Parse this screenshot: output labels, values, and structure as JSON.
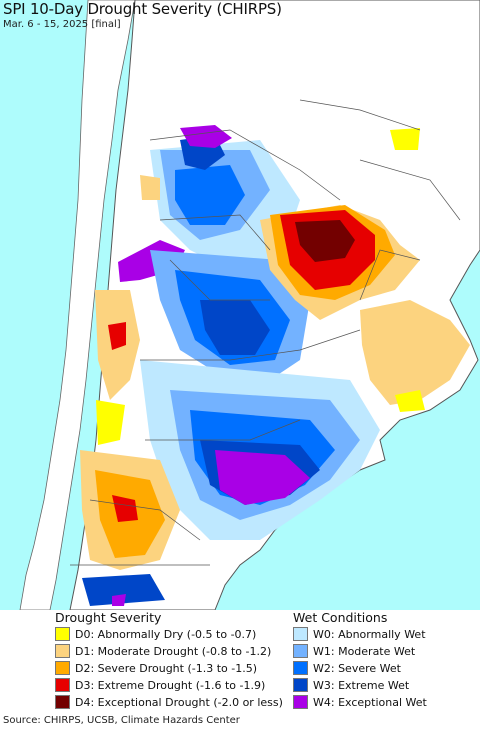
{
  "title": "SPI 10-Day Drought Severity (CHIRPS)",
  "subtitle": "Mar. 6 - 15, 2025 [final]",
  "colors": {
    "ocean": "#aefcfc",
    "land_bg": "#ffffff",
    "neighbor_land": "#ffffff",
    "borders": "#555555"
  },
  "legend": {
    "drought_heading": "Drought Severity",
    "wet_heading": "Wet Conditions",
    "drought_items": [
      {
        "label": "D0: Abnormally Dry (-0.5 to -0.7)",
        "color": "#ffff00"
      },
      {
        "label": "D1: Moderate Drought (-0.8 to -1.2)",
        "color": "#fcd37f"
      },
      {
        "label": "D2: Severe Drought (-1.3 to -1.5)",
        "color": "#ffaa00"
      },
      {
        "label": "D3: Extreme Drought (-1.6 to -1.9)",
        "color": "#e60000"
      },
      {
        "label": "D4: Exceptional Drought (-2.0 or less)",
        "color": "#730000"
      }
    ],
    "wet_items": [
      {
        "label": "W0: Abnormally Wet",
        "color": "#bee8ff"
      },
      {
        "label": "W1: Moderate Wet",
        "color": "#73b2ff"
      },
      {
        "label": "W2: Severe Wet",
        "color": "#0070ff"
      },
      {
        "label": "W3: Extreme Wet",
        "color": "#0046c8"
      },
      {
        "label": "W4: Exceptional Wet",
        "color": "#a900e6"
      }
    ]
  },
  "source": "Source: CHIRPS, UCSB, Climate Hazards Center"
}
